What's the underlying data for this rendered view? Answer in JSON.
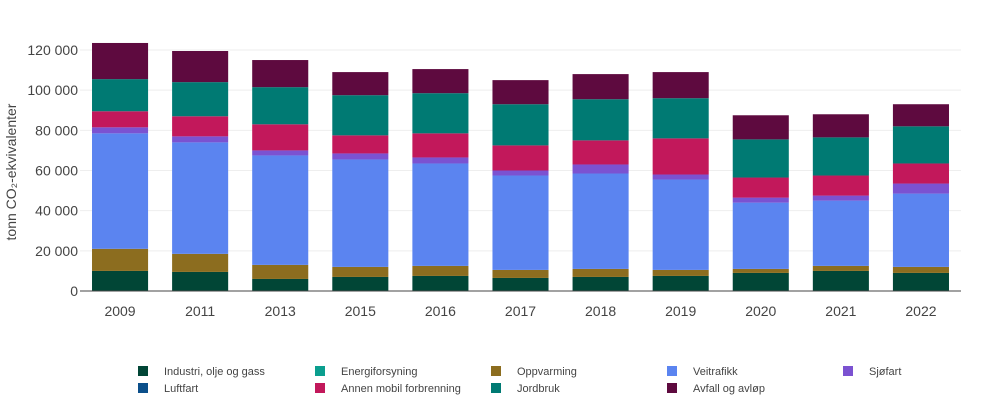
{
  "chart_data": {
    "type": "bar",
    "stacked": true,
    "ylabel": "tonn CO₂-ekvivalenter",
    "ylim": [
      0,
      120000
    ],
    "yticks": [
      0,
      20000,
      40000,
      60000,
      80000,
      100000,
      120000
    ],
    "ytick_labels": [
      "0",
      "20 000",
      "40 000",
      "60 000",
      "80 000",
      "100 000",
      "120 000"
    ],
    "grid": true,
    "legend_position": "bottom",
    "categories": [
      "2009",
      "2011",
      "2013",
      "2015",
      "2016",
      "2017",
      "2018",
      "2019",
      "2020",
      "2021",
      "2022"
    ],
    "series": [
      {
        "name": "Industri, olje og gass",
        "color": "#014636",
        "values": [
          10000,
          9500,
          6000,
          7000,
          7500,
          6500,
          7000,
          7500,
          9000,
          10000,
          9000
        ]
      },
      {
        "name": "Energiforsyning",
        "color": "#0a9e8e",
        "values": [
          0,
          0,
          0,
          0,
          0,
          0,
          0,
          0,
          0,
          0,
          0
        ]
      },
      {
        "name": "Oppvarming",
        "color": "#8c6d1f",
        "values": [
          11000,
          9000,
          7000,
          5000,
          5000,
          4000,
          4000,
          3000,
          2000,
          2500,
          3000
        ]
      },
      {
        "name": "Veitrafikk",
        "color": "#5b84f0",
        "values": [
          57500,
          55500,
          54500,
          53500,
          51000,
          47000,
          47500,
          45000,
          33000,
          32500,
          36500
        ]
      },
      {
        "name": "Sjøfart",
        "color": "#7b52d1",
        "values": [
          3000,
          3000,
          2500,
          3000,
          3000,
          2500,
          4500,
          2500,
          2500,
          2500,
          5000
        ]
      },
      {
        "name": "Luftfart",
        "color": "#0b4f8a",
        "values": [
          0,
          0,
          0,
          0,
          0,
          0,
          0,
          0,
          0,
          0,
          0
        ]
      },
      {
        "name": "Annen mobil forbrenning",
        "color": "#c2185b",
        "values": [
          8000,
          10000,
          13000,
          9000,
          12000,
          12500,
          12000,
          18000,
          10000,
          10000,
          10000
        ]
      },
      {
        "name": "Jordbruk",
        "color": "#007a73",
        "values": [
          16000,
          17000,
          18500,
          20000,
          20000,
          20500,
          20500,
          20000,
          19000,
          19000,
          18500
        ]
      },
      {
        "name": "Avfall og avløp",
        "color": "#5e0a3f",
        "values": [
          18000,
          15500,
          13500,
          11500,
          12000,
          12000,
          12500,
          13000,
          12000,
          11500,
          11000
        ]
      }
    ]
  }
}
